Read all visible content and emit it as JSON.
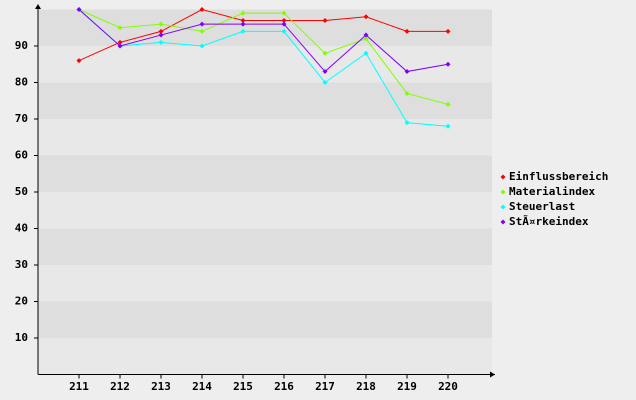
{
  "chart_data": {
    "type": "line",
    "categories": [
      "211",
      "212",
      "213",
      "214",
      "215",
      "216",
      "217",
      "218",
      "219",
      "220"
    ],
    "series": [
      {
        "name": "Einflussbereich",
        "color": "#ff0000",
        "values": [
          86,
          91,
          94,
          100,
          97,
          97,
          97,
          98,
          94,
          94
        ]
      },
      {
        "name": "Materialindex",
        "color": "#80ff00",
        "values": [
          100,
          95,
          96,
          94,
          99,
          99,
          88,
          92,
          77,
          74
        ]
      },
      {
        "name": "Steuerlast",
        "color": "#00ffff",
        "values": [
          100,
          90,
          91,
          90,
          94,
          94,
          80,
          88,
          69,
          68
        ]
      },
      {
        "name": "StÃ¤rkeindex",
        "color": "#8000ff",
        "values": [
          100,
          90,
          93,
          96,
          96,
          96,
          83,
          93,
          83,
          85
        ]
      }
    ],
    "ylim": [
      0,
      100
    ],
    "yticks": [
      10,
      20,
      30,
      40,
      50,
      60,
      70,
      80,
      90
    ],
    "grid": true,
    "legend": "right"
  }
}
